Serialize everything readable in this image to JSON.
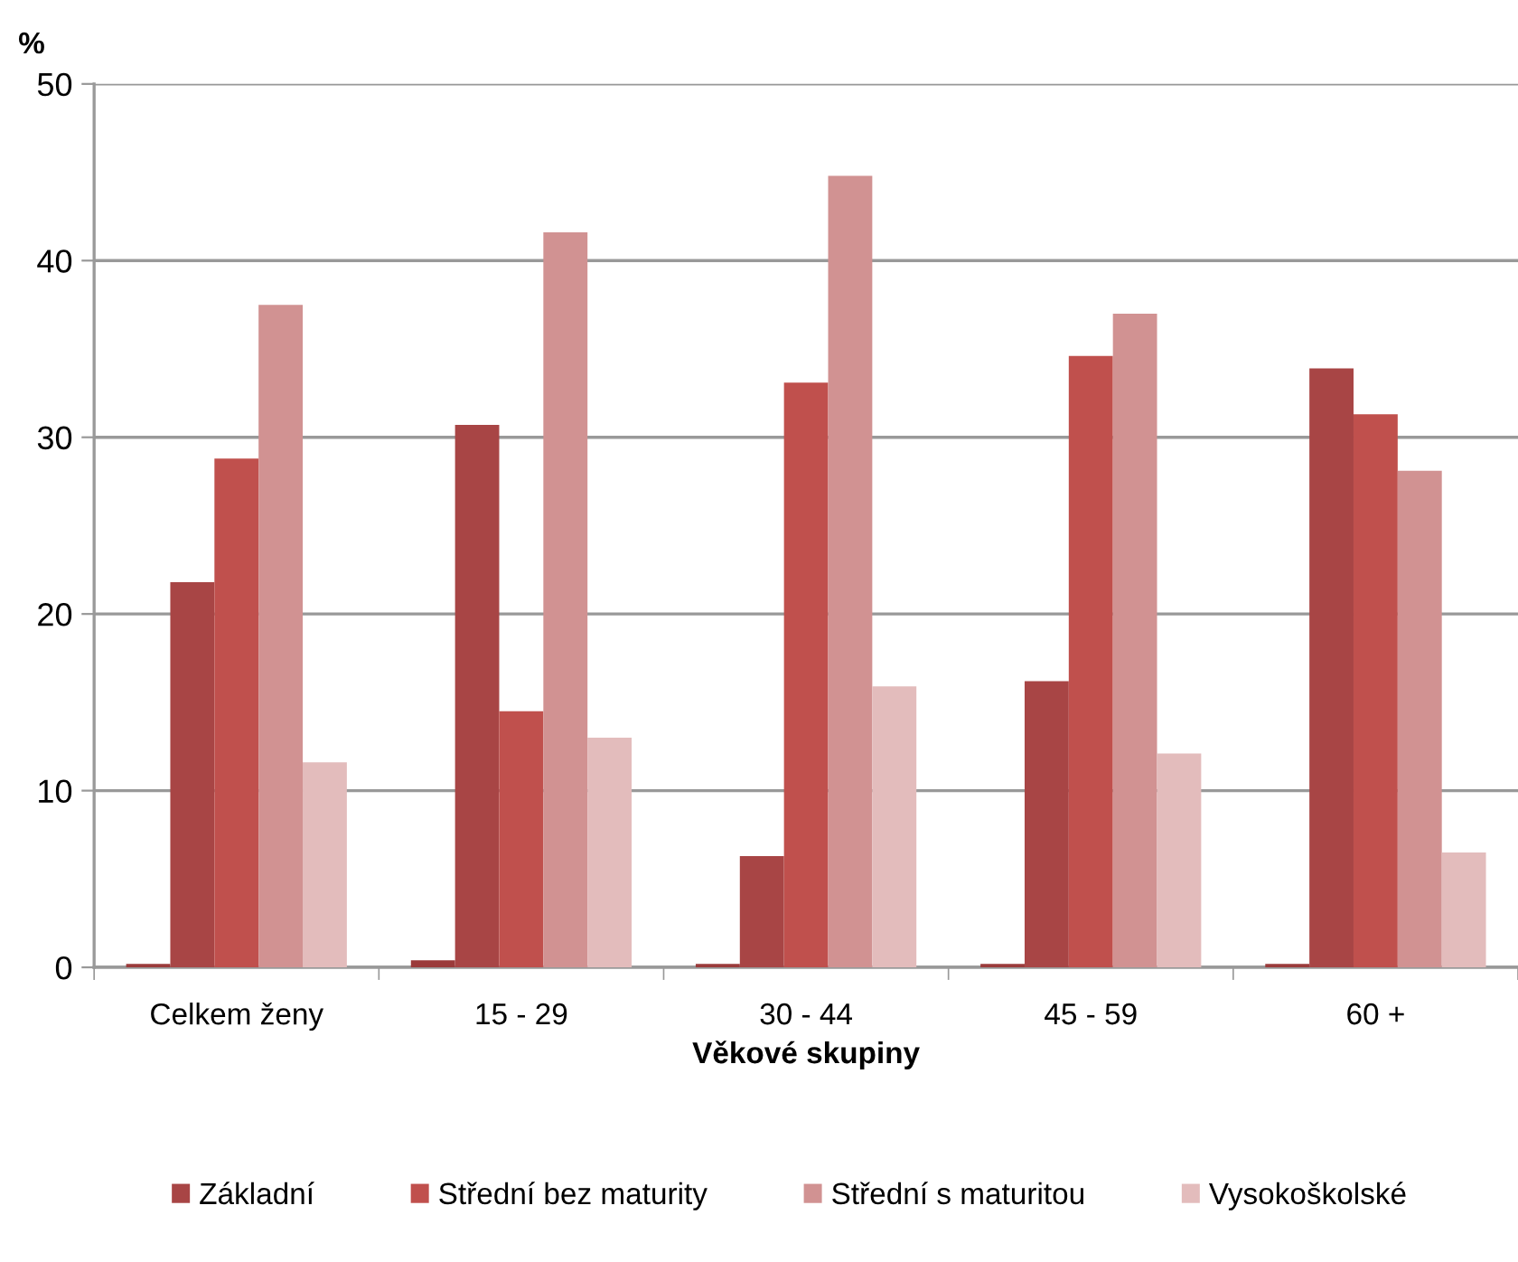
{
  "chart_data": {
    "type": "bar",
    "ylabel": "%",
    "xlabel": "Věkové skupiny",
    "categories": [
      "Celkem ženy",
      "15 - 29",
      "30 - 44",
      "45 - 59",
      "60 +"
    ],
    "series": [
      {
        "color": "#9b3b3b",
        "values": [
          0.2,
          0.4,
          0.2,
          0.2,
          0.2
        ]
      },
      {
        "name": "Základní",
        "color": "#a84545",
        "values": [
          21.8,
          30.7,
          6.3,
          16.2,
          33.9
        ]
      },
      {
        "name": "Střední bez maturity",
        "color": "#c0504d",
        "values": [
          28.8,
          14.5,
          33.1,
          34.6,
          31.3
        ]
      },
      {
        "name": "Střední s maturitou",
        "color": "#d19292",
        "values": [
          37.5,
          41.6,
          44.8,
          37.0,
          28.1
        ]
      },
      {
        "name": "Vysokoškolské",
        "color": "#e3bcbc",
        "values": [
          11.6,
          13.0,
          15.9,
          12.1,
          6.5
        ]
      }
    ],
    "ylim": [
      0,
      50
    ],
    "yticks": [
      0,
      10,
      20,
      30,
      40,
      50
    ],
    "grid": "y",
    "legend": "bottom"
  }
}
